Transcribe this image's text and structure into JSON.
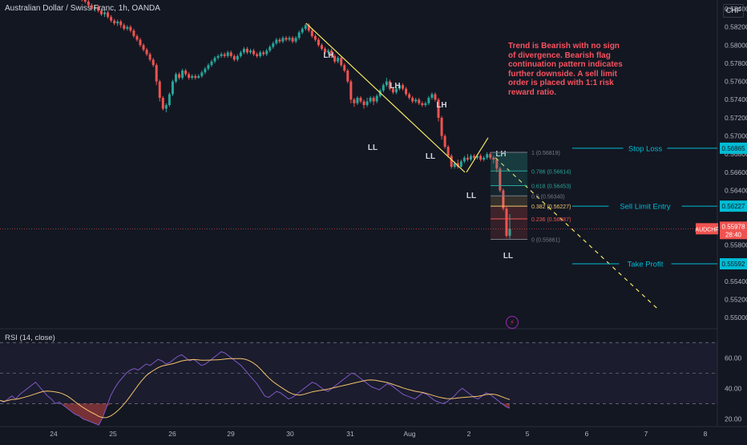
{
  "header": {
    "title": "Australian Dollar / Swiss Franc, 1h, OANDA",
    "currency": "CHF"
  },
  "rsi_title": "RSI (14, close)",
  "note": "Trend is Bearish with no sign of divergence. Bearish flag continuation pattern indicates further downside. A sell limit order is placed with 1:1 risk reward ratio.",
  "colors": {
    "bg": "#131722",
    "up": "#26a69a",
    "down": "#ef5350",
    "trend": "#f5e663",
    "level": "#00bcd4",
    "rsi": "#7e57c2",
    "rsi_ma": "#f5c46b"
  },
  "chart_data": {
    "type": "candlestick",
    "price_axis": {
      "ylim": [
        0.5493,
        0.5855
      ],
      "ticks": [
        "0.58400",
        "0.58200",
        "0.58000",
        "0.57800",
        "0.57600",
        "0.57400",
        "0.57200",
        "0.57000",
        "0.56800",
        "0.56600",
        "0.56400",
        "0.56200",
        "0.56000",
        "0.55800",
        "0.55600",
        "0.55400",
        "0.55200",
        "0.55000"
      ]
    },
    "x_ticks": [
      "24",
      "25",
      "26",
      "29",
      "30",
      "31",
      "Aug",
      "2",
      "5",
      "6",
      "7",
      "8"
    ],
    "last_price": {
      "label": "AUDCHF",
      "value": "0.55978",
      "countdown": "28:40"
    },
    "candles": [
      [
        0.586,
        0.5856,
        0.5862,
        0.5854
      ],
      [
        0.5856,
        0.586,
        0.5864,
        0.5854
      ],
      [
        0.586,
        0.5856,
        0.5862,
        0.5853
      ],
      [
        0.5856,
        0.5852,
        0.5858,
        0.585
      ],
      [
        0.5852,
        0.5854,
        0.5856,
        0.585
      ],
      [
        0.5854,
        0.5851,
        0.5856,
        0.5848
      ],
      [
        0.5851,
        0.5848,
        0.5853,
        0.5846
      ],
      [
        0.5848,
        0.5844,
        0.585,
        0.5842
      ],
      [
        0.5844,
        0.584,
        0.5846,
        0.5838
      ],
      [
        0.584,
        0.5842,
        0.5844,
        0.5837
      ],
      [
        0.5842,
        0.5838,
        0.5844,
        0.5836
      ],
      [
        0.5838,
        0.5834,
        0.584,
        0.5832
      ],
      [
        0.5834,
        0.5836,
        0.5838,
        0.5831
      ],
      [
        0.5836,
        0.5831,
        0.5838,
        0.5829
      ],
      [
        0.5831,
        0.5827,
        0.5833,
        0.5825
      ],
      [
        0.5827,
        0.5824,
        0.5829,
        0.5822
      ],
      [
        0.5824,
        0.5826,
        0.5828,
        0.5821
      ],
      [
        0.5826,
        0.5822,
        0.5828,
        0.5819
      ],
      [
        0.5822,
        0.5818,
        0.5824,
        0.5816
      ],
      [
        0.5818,
        0.582,
        0.5822,
        0.5816
      ],
      [
        0.582,
        0.5816,
        0.5822,
        0.5814
      ],
      [
        0.5816,
        0.581,
        0.5818,
        0.5808
      ],
      [
        0.581,
        0.5806,
        0.5812,
        0.5804
      ],
      [
        0.5806,
        0.58,
        0.5808,
        0.5798
      ],
      [
        0.58,
        0.5795,
        0.5802,
        0.5793
      ],
      [
        0.5795,
        0.579,
        0.5797,
        0.5788
      ],
      [
        0.579,
        0.5784,
        0.5792,
        0.5782
      ],
      [
        0.5784,
        0.5778,
        0.5786,
        0.5776
      ],
      [
        0.5778,
        0.576,
        0.578,
        0.5756
      ],
      [
        0.576,
        0.5742,
        0.5762,
        0.5738
      ],
      [
        0.5742,
        0.573,
        0.5744,
        0.5728
      ],
      [
        0.573,
        0.5734,
        0.5736,
        0.5726
      ],
      [
        0.5734,
        0.5746,
        0.5748,
        0.5732
      ],
      [
        0.5746,
        0.576,
        0.5762,
        0.5744
      ],
      [
        0.576,
        0.5768,
        0.577,
        0.5758
      ],
      [
        0.5768,
        0.5764,
        0.577,
        0.5762
      ],
      [
        0.5764,
        0.5772,
        0.5774,
        0.5762
      ],
      [
        0.5772,
        0.5768,
        0.5774,
        0.5766
      ],
      [
        0.5768,
        0.5764,
        0.577,
        0.5762
      ],
      [
        0.5764,
        0.5766,
        0.5768,
        0.5762
      ],
      [
        0.5766,
        0.5764,
        0.5768,
        0.5762
      ],
      [
        0.5764,
        0.5766,
        0.5768,
        0.5763
      ],
      [
        0.5766,
        0.577,
        0.5772,
        0.5764
      ],
      [
        0.577,
        0.5774,
        0.5776,
        0.5768
      ],
      [
        0.5774,
        0.5778,
        0.578,
        0.5772
      ],
      [
        0.5778,
        0.5782,
        0.5784,
        0.5776
      ],
      [
        0.5782,
        0.5786,
        0.5788,
        0.578
      ],
      [
        0.5786,
        0.5788,
        0.579,
        0.5784
      ],
      [
        0.5788,
        0.579,
        0.5792,
        0.5786
      ],
      [
        0.579,
        0.5788,
        0.5792,
        0.5786
      ],
      [
        0.5788,
        0.5792,
        0.5794,
        0.5786
      ],
      [
        0.5792,
        0.5788,
        0.5794,
        0.5786
      ],
      [
        0.5788,
        0.5784,
        0.579,
        0.5782
      ],
      [
        0.5784,
        0.5788,
        0.579,
        0.5782
      ],
      [
        0.5788,
        0.5792,
        0.5794,
        0.5786
      ],
      [
        0.5792,
        0.5796,
        0.5798,
        0.579
      ],
      [
        0.5796,
        0.5792,
        0.5798,
        0.579
      ],
      [
        0.5792,
        0.5794,
        0.5796,
        0.579
      ],
      [
        0.5794,
        0.579,
        0.5796,
        0.5788
      ],
      [
        0.579,
        0.5788,
        0.5792,
        0.5786
      ],
      [
        0.5788,
        0.5792,
        0.5794,
        0.5786
      ],
      [
        0.5792,
        0.579,
        0.5794,
        0.5788
      ],
      [
        0.579,
        0.5794,
        0.5796,
        0.5788
      ],
      [
        0.5794,
        0.5798,
        0.58,
        0.5792
      ],
      [
        0.5798,
        0.5802,
        0.5804,
        0.5796
      ],
      [
        0.5802,
        0.5806,
        0.5808,
        0.58
      ],
      [
        0.5806,
        0.5804,
        0.5808,
        0.5802
      ],
      [
        0.5804,
        0.5808,
        0.581,
        0.5802
      ],
      [
        0.5808,
        0.5806,
        0.581,
        0.5804
      ],
      [
        0.5806,
        0.5808,
        0.581,
        0.5804
      ],
      [
        0.5808,
        0.5804,
        0.581,
        0.5802
      ],
      [
        0.5804,
        0.5808,
        0.581,
        0.5802
      ],
      [
        0.5808,
        0.5814,
        0.5816,
        0.5806
      ],
      [
        0.5814,
        0.5818,
        0.582,
        0.5812
      ],
      [
        0.5818,
        0.5822,
        0.5824,
        0.5816
      ],
      [
        0.5822,
        0.5816,
        0.5824,
        0.5814
      ],
      [
        0.5816,
        0.581,
        0.5818,
        0.5808
      ],
      [
        0.581,
        0.5806,
        0.5812,
        0.5804
      ],
      [
        0.5806,
        0.58,
        0.5808,
        0.5798
      ],
      [
        0.58,
        0.5796,
        0.5802,
        0.5794
      ],
      [
        0.5796,
        0.5792,
        0.5798,
        0.579
      ],
      [
        0.5792,
        0.5794,
        0.5796,
        0.579
      ],
      [
        0.5794,
        0.5788,
        0.5796,
        0.5786
      ],
      [
        0.5788,
        0.5782,
        0.579,
        0.578
      ],
      [
        0.5782,
        0.5786,
        0.5788,
        0.578
      ],
      [
        0.5786,
        0.5778,
        0.5788,
        0.5776
      ],
      [
        0.5778,
        0.5772,
        0.578,
        0.577
      ],
      [
        0.5772,
        0.576,
        0.5774,
        0.5758
      ],
      [
        0.576,
        0.574,
        0.5762,
        0.5736
      ],
      [
        0.574,
        0.5736,
        0.5742,
        0.5732
      ],
      [
        0.5736,
        0.5742,
        0.5744,
        0.5734
      ],
      [
        0.5742,
        0.5738,
        0.5744,
        0.5736
      ],
      [
        0.5738,
        0.5734,
        0.574,
        0.573
      ],
      [
        0.5734,
        0.5738,
        0.5742,
        0.5732
      ],
      [
        0.5738,
        0.5742,
        0.5744,
        0.5736
      ],
      [
        0.5742,
        0.5738,
        0.5744,
        0.5734
      ],
      [
        0.5738,
        0.5744,
        0.5746,
        0.5736
      ],
      [
        0.5744,
        0.575,
        0.5752,
        0.5742
      ],
      [
        0.575,
        0.5756,
        0.5758,
        0.5748
      ],
      [
        0.5756,
        0.576,
        0.5764,
        0.5754
      ],
      [
        0.576,
        0.5752,
        0.5762,
        0.575
      ],
      [
        0.5752,
        0.5748,
        0.5754,
        0.5746
      ],
      [
        0.5748,
        0.5752,
        0.5754,
        0.5746
      ],
      [
        0.5752,
        0.5756,
        0.5758,
        0.575
      ],
      [
        0.5756,
        0.5752,
        0.5758,
        0.575
      ],
      [
        0.5752,
        0.5746,
        0.5754,
        0.5744
      ],
      [
        0.5746,
        0.5742,
        0.5748,
        0.574
      ],
      [
        0.5742,
        0.5738,
        0.5744,
        0.5736
      ],
      [
        0.5738,
        0.574,
        0.5742,
        0.5736
      ],
      [
        0.574,
        0.5736,
        0.5742,
        0.5734
      ],
      [
        0.5736,
        0.5734,
        0.5738,
        0.5732
      ],
      [
        0.5734,
        0.5736,
        0.5738,
        0.5732
      ],
      [
        0.5736,
        0.5742,
        0.5744,
        0.5734
      ],
      [
        0.5742,
        0.5746,
        0.5748,
        0.574
      ],
      [
        0.5746,
        0.574,
        0.5748,
        0.5738
      ],
      [
        0.574,
        0.572,
        0.5742,
        0.5716
      ],
      [
        0.572,
        0.57,
        0.5722,
        0.5696
      ],
      [
        0.57,
        0.5688,
        0.5702,
        0.5686
      ],
      [
        0.5688,
        0.5678,
        0.569,
        0.5676
      ],
      [
        0.5678,
        0.5666,
        0.568,
        0.5664
      ],
      [
        0.5666,
        0.567,
        0.5672,
        0.5664
      ],
      [
        0.567,
        0.5666,
        0.5674,
        0.5664
      ],
      [
        0.5666,
        0.5672,
        0.5674,
        0.5665
      ],
      [
        0.5672,
        0.5676,
        0.5678,
        0.567
      ],
      [
        0.5676,
        0.5674,
        0.568,
        0.5672
      ],
      [
        0.5674,
        0.5678,
        0.568,
        0.5672
      ],
      [
        0.5678,
        0.5676,
        0.568,
        0.5674
      ],
      [
        0.5676,
        0.5678,
        0.568,
        0.5674
      ],
      [
        0.5678,
        0.5674,
        0.568,
        0.5672
      ],
      [
        0.5674,
        0.5676,
        0.5678,
        0.5672
      ],
      [
        0.5676,
        0.568,
        0.5682,
        0.5674
      ],
      [
        0.568,
        0.5676,
        0.5682,
        0.5674
      ],
      [
        0.5676,
        0.5674,
        0.5678,
        0.567
      ],
      [
        0.5674,
        0.5664,
        0.5676,
        0.566
      ],
      [
        0.5664,
        0.564,
        0.5666,
        0.5638
      ],
      [
        0.564,
        0.562,
        0.5642,
        0.5618
      ],
      [
        0.562,
        0.559,
        0.5622,
        0.5588
      ],
      [
        0.559,
        0.55978,
        0.5614,
        0.5587
      ]
    ],
    "trend_lines": [
      {
        "from": [
          "30",
          0.5824
        ],
        "to": [
          "2",
          0.566
        ]
      },
      {
        "from": [
          "2",
          0.566
        ],
        "to": [
          "2",
          0.5698
        ]
      },
      {
        "from": [
          "2",
          0.5676
        ],
        "to": [
          "8",
          0.551
        ]
      }
    ],
    "swing_labels": [
      "LH",
      "LH",
      "LH",
      "LH",
      "LL",
      "LL",
      "LL",
      "LL"
    ],
    "fibonacci": [
      {
        "level": "1",
        "price": "0.56819"
      },
      {
        "level": "0.786",
        "price": "0.56614"
      },
      {
        "level": "0.618",
        "price": "0.56453"
      },
      {
        "level": "0.5",
        "price": "0.56340"
      },
      {
        "level": "0.382",
        "price": "0.56227"
      },
      {
        "level": "0.236",
        "price": "0.56087"
      },
      {
        "level": "0",
        "price": "0.55861"
      }
    ],
    "levels": [
      {
        "name": "Stop Loss",
        "price": "0.56865"
      },
      {
        "name": "Sell Limit Entry",
        "price": "0.56227"
      },
      {
        "name": "Take Profit",
        "price": "0.55592"
      }
    ],
    "rsi": {
      "ylim": [
        16,
        78
      ],
      "ticks": [
        "60.00",
        "40.00",
        "20.00"
      ],
      "bands": [
        70,
        50,
        30
      ],
      "values": [
        32,
        31,
        33,
        35,
        33,
        36,
        38,
        40,
        42,
        44,
        41,
        38,
        35,
        33,
        30,
        31,
        29,
        27,
        25,
        23,
        22,
        20,
        19,
        18,
        17,
        16,
        21,
        28,
        35,
        40,
        44,
        47,
        50,
        52,
        53,
        52,
        54,
        56,
        55,
        57,
        59,
        58,
        56,
        57,
        59,
        61,
        62,
        60,
        58,
        59,
        57,
        55,
        56,
        58,
        60,
        62,
        64,
        63,
        61,
        59,
        57,
        55,
        52,
        49,
        46,
        43,
        39,
        35,
        34,
        36,
        38,
        37,
        35,
        33,
        34,
        36,
        38,
        40,
        42,
        44,
        43,
        41,
        39,
        38,
        40,
        42,
        44,
        46,
        48,
        50,
        49,
        47,
        45,
        43,
        41,
        40,
        39,
        41,
        43,
        42,
        40,
        38,
        36,
        35,
        34,
        33,
        35,
        37,
        36,
        34,
        32,
        31,
        30,
        31,
        33,
        35,
        38,
        40,
        38,
        36,
        34,
        33,
        35,
        37,
        36,
        34,
        32,
        30,
        28,
        27
      ]
    }
  }
}
